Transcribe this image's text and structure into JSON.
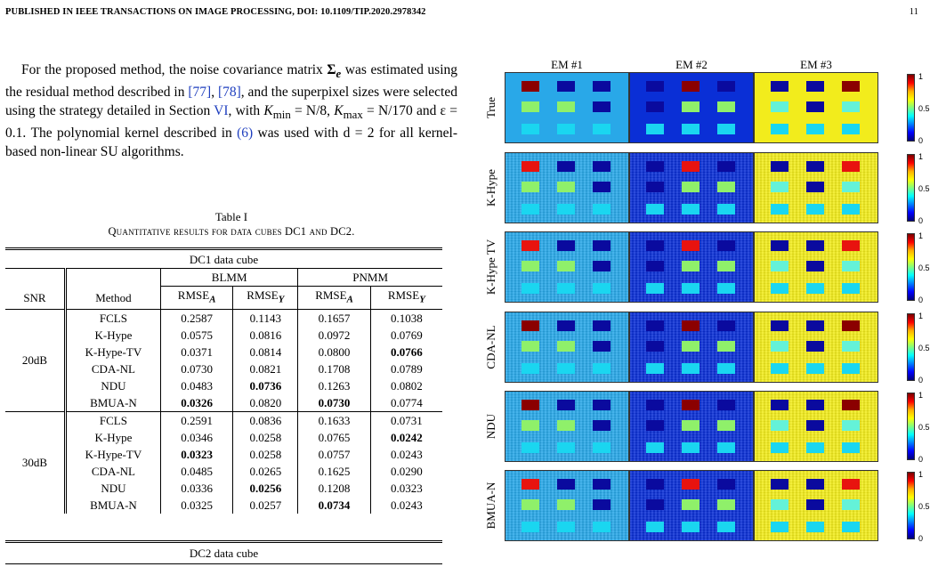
{
  "header": {
    "left": "PUBLISHED IN IEEE TRANSACTIONS ON IMAGE PROCESSING, DOI: 10.1109/TIP.2020.2978342",
    "page": "11"
  },
  "paragraph": {
    "p1": "For the proposed method, the noise covariance matrix ",
    "sigma": "Σ",
    "sigma_sub": "e",
    "p2": " was estimated using the residual method described in ",
    "ref1": "[77]",
    "p3": ", ",
    "ref2": "[78]",
    "p4": ", and the superpixel sizes were selected using the strategy detailed in Section ",
    "sec": "VI",
    "p5": ", with ",
    "kmin": "K",
    "kmin_sub": "min",
    "kmin_val": " = N/8, ",
    "kmax": "K",
    "kmax_sub": "max",
    "kmax_val": " = N/170",
    "p6": " and ε = 0.1. The polynomial kernel described in ",
    "eq": "(6)",
    "p7": " was used with d = 2 for all kernel-based non-linear SU algorithms."
  },
  "table": {
    "caption": "Table I",
    "subtitle": "Quantitative results for data cubes DC1 and DC2.",
    "dc1": "DC1 data cube",
    "dc2": "DC2 data cube",
    "blmm": "BLMM",
    "pnmm": "PNMM",
    "snr": "SNR",
    "method": "Method",
    "rmse": "RMSE",
    "sub_a": "A",
    "sub_y": "Y",
    "groups": [
      {
        "snr": "20dB",
        "rows": [
          {
            "m": "FCLS",
            "v": [
              "0.2587",
              "0.1143",
              "0.1657",
              "0.1038"
            ],
            "bold": [
              false,
              false,
              false,
              false
            ]
          },
          {
            "m": "K-Hype",
            "v": [
              "0.0575",
              "0.0816",
              "0.0972",
              "0.0769"
            ],
            "bold": [
              false,
              false,
              false,
              false
            ]
          },
          {
            "m": "K-Hype-TV",
            "v": [
              "0.0371",
              "0.0814",
              "0.0800",
              "0.0766"
            ],
            "bold": [
              false,
              false,
              false,
              true
            ]
          },
          {
            "m": "CDA-NL",
            "v": [
              "0.0730",
              "0.0821",
              "0.1708",
              "0.0789"
            ],
            "bold": [
              false,
              false,
              false,
              false
            ]
          },
          {
            "m": "NDU",
            "v": [
              "0.0483",
              "0.0736",
              "0.1263",
              "0.0802"
            ],
            "bold": [
              false,
              true,
              false,
              false
            ]
          },
          {
            "m": "BMUA-N",
            "v": [
              "0.0326",
              "0.0820",
              "0.0730",
              "0.0774"
            ],
            "bold": [
              true,
              false,
              true,
              false
            ]
          }
        ]
      },
      {
        "snr": "30dB",
        "rows": [
          {
            "m": "FCLS",
            "v": [
              "0.2591",
              "0.0836",
              "0.1633",
              "0.0731"
            ],
            "bold": [
              false,
              false,
              false,
              false
            ]
          },
          {
            "m": "K-Hype",
            "v": [
              "0.0346",
              "0.0258",
              "0.0765",
              "0.0242"
            ],
            "bold": [
              false,
              false,
              false,
              true
            ]
          },
          {
            "m": "K-Hype-TV",
            "v": [
              "0.0323",
              "0.0258",
              "0.0757",
              "0.0243"
            ],
            "bold": [
              true,
              false,
              false,
              false
            ]
          },
          {
            "m": "CDA-NL",
            "v": [
              "0.0485",
              "0.0265",
              "0.1625",
              "0.0290"
            ],
            "bold": [
              false,
              false,
              false,
              false
            ]
          },
          {
            "m": "NDU",
            "v": [
              "0.0336",
              "0.0256",
              "0.1208",
              "0.0323"
            ],
            "bold": [
              false,
              true,
              false,
              false
            ]
          },
          {
            "m": "BMUA-N",
            "v": [
              "0.0325",
              "0.0257",
              "0.0734",
              "0.0243"
            ],
            "bold": [
              false,
              false,
              true,
              false
            ]
          }
        ]
      }
    ]
  },
  "figure": {
    "columns": [
      "EM #1",
      "EM #2",
      "EM #3"
    ],
    "rows": [
      "True",
      "K-Hype",
      "K-Hype TV",
      "CDA-NL",
      "NDU",
      "BMUA-N"
    ],
    "colorbar_ticks": [
      "1",
      "0.5",
      "0"
    ],
    "colors": {
      "em1_bg": "#29a8e8",
      "em2_bg": "#0a2fd6",
      "em3_bg": "#f2ec1c",
      "dark_red": "#8b0000",
      "red": "#e8130f",
      "dark_blue": "#0a0a9e",
      "green": "#8ff06a",
      "cyan": "#1ad6f0",
      "light_cyan": "#64f2d8"
    }
  }
}
